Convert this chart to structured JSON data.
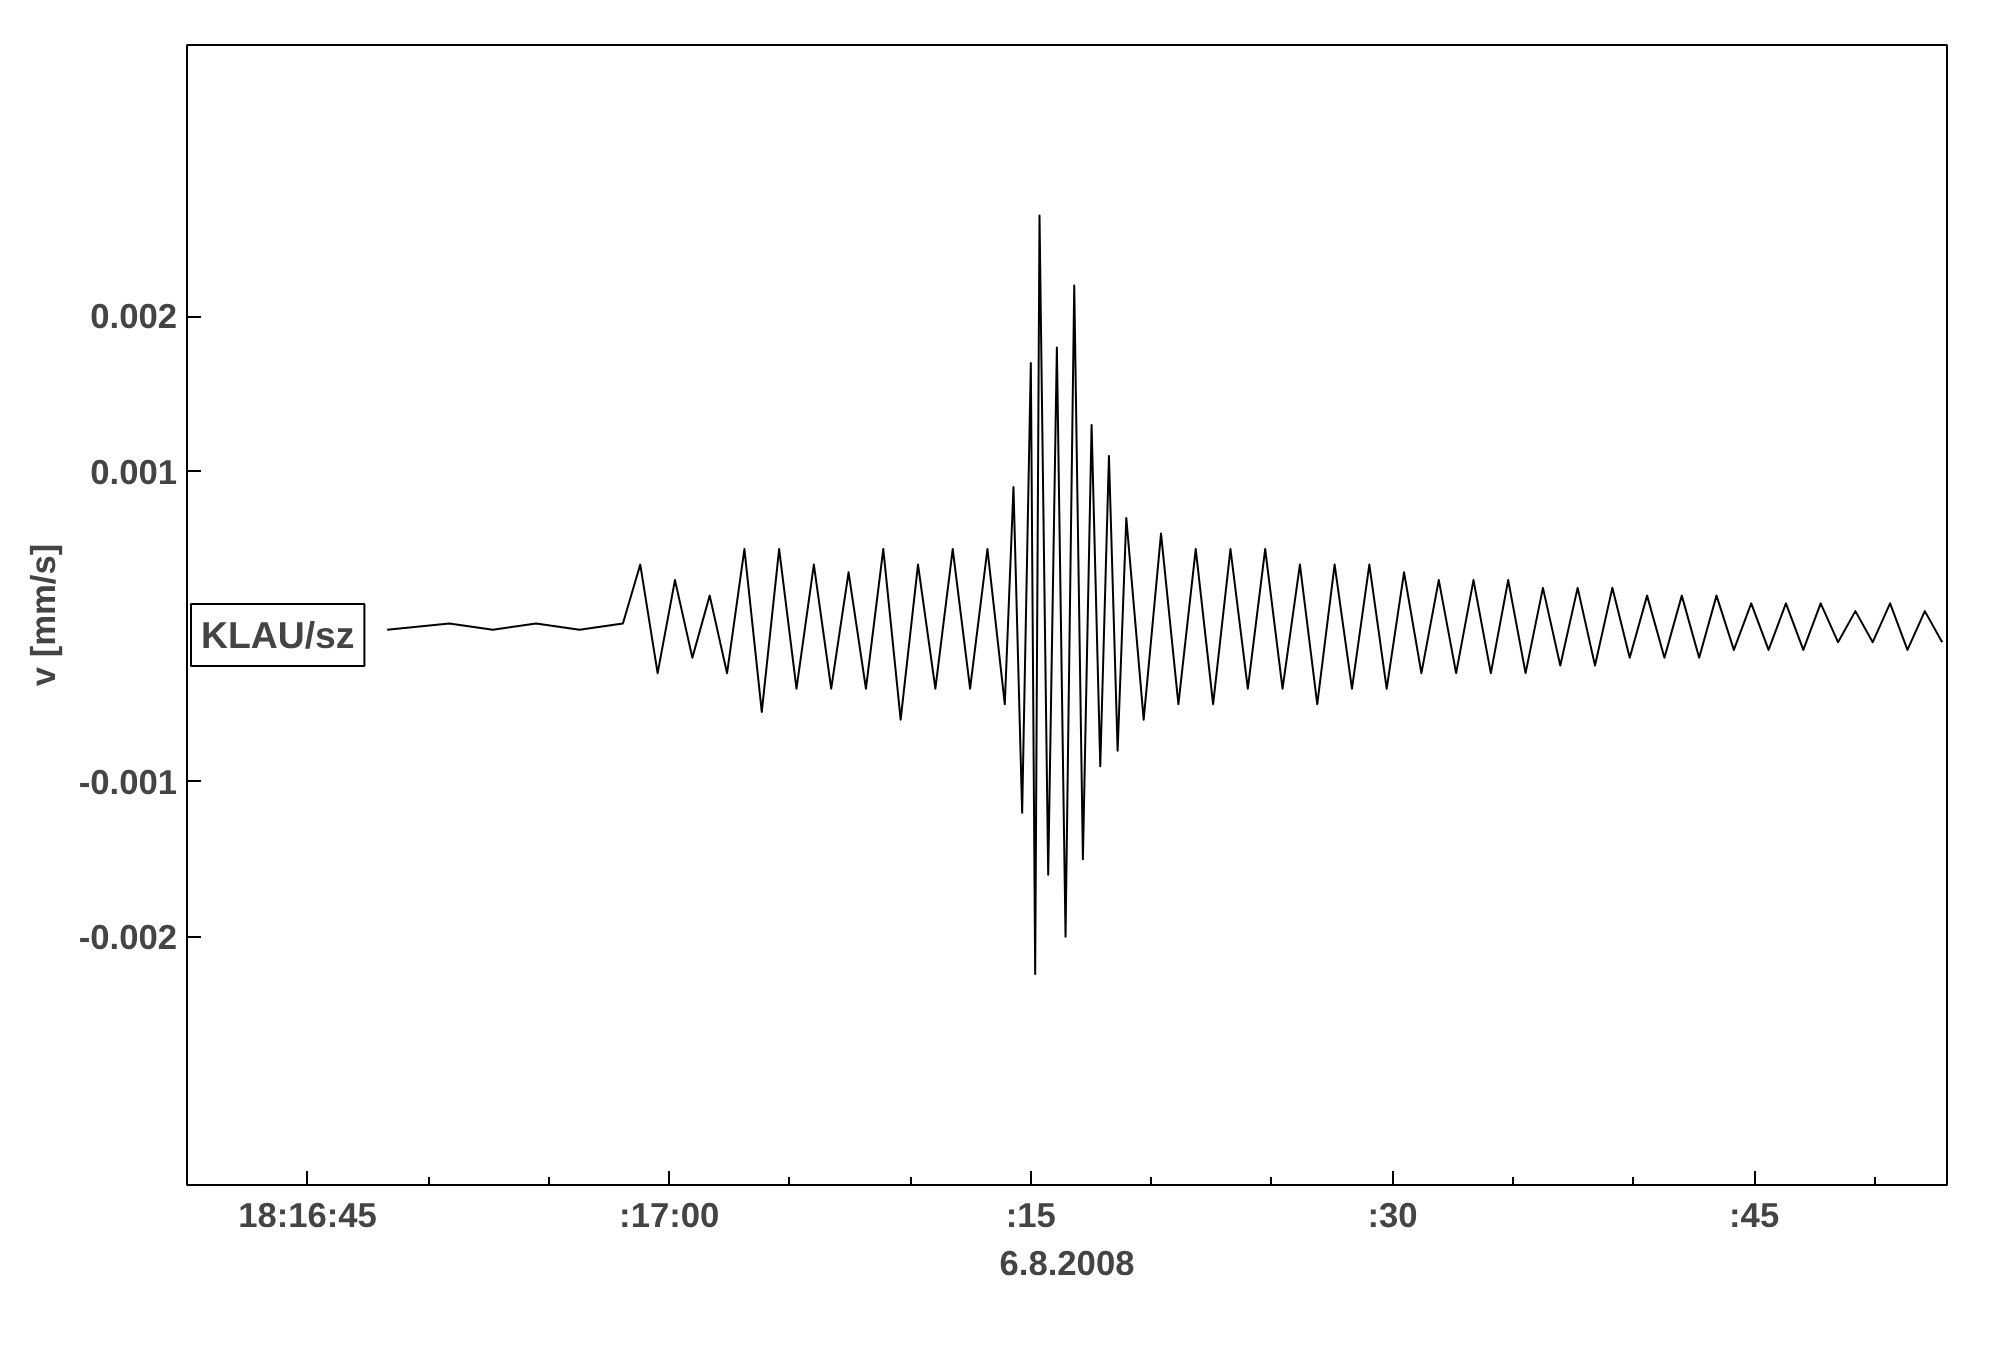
{
  "chart_data": {
    "type": "line",
    "xlabel": "6.8.2008",
    "ylabel": "v [mm/s]",
    "annotations": [
      "KLAU/sz"
    ],
    "xlim": [
      "2008-08-06T18:16:40",
      "2008-08-06T18:17:53"
    ],
    "ylim": [
      -0.0036,
      0.00375
    ],
    "xticks": [
      {
        "value": "2008-08-06T18:16:45",
        "label": "18:16:45"
      },
      {
        "value": "2008-08-06T18:16:50",
        "label": null
      },
      {
        "value": "2008-08-06T18:16:55",
        "label": null
      },
      {
        "value": "2008-08-06T18:17:00",
        "label": ":17:00"
      },
      {
        "value": "2008-08-06T18:17:05",
        "label": null
      },
      {
        "value": "2008-08-06T18:17:10",
        "label": null
      },
      {
        "value": "2008-08-06T18:17:15",
        "label": ":15"
      },
      {
        "value": "2008-08-06T18:17:20",
        "label": null
      },
      {
        "value": "2008-08-06T18:17:25",
        "label": null
      },
      {
        "value": "2008-08-06T18:17:30",
        "label": ":30"
      },
      {
        "value": "2008-08-06T18:17:35",
        "label": null
      },
      {
        "value": "2008-08-06T18:17:40",
        "label": null
      },
      {
        "value": "2008-08-06T18:17:45",
        "label": ":45"
      },
      {
        "value": "2008-08-06T18:17:50",
        "label": null
      }
    ],
    "yticks": [
      -0.002,
      -0.001,
      0.001,
      0.002
    ],
    "marker": "none",
    "line_style": "solid",
    "series": [
      {
        "color": "#000000",
        "x": [
          "2008-08-06T18:16:48.30",
          "2008-08-06T18:16:50.88",
          "2008-08-06T18:16:52.68",
          "2008-08-06T18:16:54.48",
          "2008-08-06T18:16:56.28",
          "2008-08-06T18:16:58.08",
          "2008-08-06T18:16:58.80",
          "2008-08-06T18:16:59.52",
          "2008-08-06T18:17:00.24",
          "2008-08-06T18:17:00.96",
          "2008-08-06T18:17:01.68",
          "2008-08-06T18:17:02.40",
          "2008-08-06T18:17:03.12",
          "2008-08-06T18:17:03.84",
          "2008-08-06T18:17:04.56",
          "2008-08-06T18:17:05.28",
          "2008-08-06T18:17:06.00",
          "2008-08-06T18:17:06.72",
          "2008-08-06T18:17:07.44",
          "2008-08-06T18:17:08.16",
          "2008-08-06T18:17:08.88",
          "2008-08-06T18:17:09.60",
          "2008-08-06T18:17:10.32",
          "2008-08-06T18:17:11.04",
          "2008-08-06T18:17:11.76",
          "2008-08-06T18:17:12.48",
          "2008-08-06T18:17:13.20",
          "2008-08-06T18:17:13.92",
          "2008-08-06T18:17:14.28",
          "2008-08-06T18:17:14.64",
          "2008-08-06T18:17:15.00",
          "2008-08-06T18:17:15.18",
          "2008-08-06T18:17:15.36",
          "2008-08-06T18:17:15.72",
          "2008-08-06T18:17:16.08",
          "2008-08-06T18:17:16.44",
          "2008-08-06T18:17:16.80",
          "2008-08-06T18:17:17.16",
          "2008-08-06T18:17:17.52",
          "2008-08-06T18:17:17.88",
          "2008-08-06T18:17:18.24",
          "2008-08-06T18:17:18.60",
          "2008-08-06T18:17:18.96",
          "2008-08-06T18:17:19.68",
          "2008-08-06T18:17:20.40",
          "2008-08-06T18:17:21.12",
          "2008-08-06T18:17:21.84",
          "2008-08-06T18:17:22.56",
          "2008-08-06T18:17:23.28",
          "2008-08-06T18:17:24.00",
          "2008-08-06T18:17:24.72",
          "2008-08-06T18:17:25.44",
          "2008-08-06T18:17:26.16",
          "2008-08-06T18:17:26.88",
          "2008-08-06T18:17:27.60",
          "2008-08-06T18:17:28.32",
          "2008-08-06T18:17:29.04",
          "2008-08-06T18:17:29.76",
          "2008-08-06T18:17:30.48",
          "2008-08-06T18:17:31.20",
          "2008-08-06T18:17:31.92",
          "2008-08-06T18:17:32.64",
          "2008-08-06T18:17:33.36",
          "2008-08-06T18:17:34.08",
          "2008-08-06T18:17:34.80",
          "2008-08-06T18:17:35.52",
          "2008-08-06T18:17:36.24",
          "2008-08-06T18:17:36.96",
          "2008-08-06T18:17:37.68",
          "2008-08-06T18:17:38.40",
          "2008-08-06T18:17:39.12",
          "2008-08-06T18:17:39.84",
          "2008-08-06T18:17:40.56",
          "2008-08-06T18:17:41.28",
          "2008-08-06T18:17:42.00",
          "2008-08-06T18:17:42.72",
          "2008-08-06T18:17:43.44",
          "2008-08-06T18:17:44.16",
          "2008-08-06T18:17:44.88",
          "2008-08-06T18:17:45.60",
          "2008-08-06T18:17:46.32",
          "2008-08-06T18:17:47.04",
          "2008-08-06T18:17:47.76",
          "2008-08-06T18:17:48.48",
          "2008-08-06T18:17:49.20",
          "2008-08-06T18:17:49.92",
          "2008-08-06T18:17:50.64",
          "2008-08-06T18:17:51.36",
          "2008-08-06T18:17:52.08",
          "2008-08-06T18:17:52.80"
        ],
        "values": [
          -2e-05,
          2e-05,
          -2e-05,
          2e-05,
          -2e-05,
          2e-05,
          0.0004,
          -0.0003,
          0.0003,
          -0.0002,
          0.0002,
          -0.0003,
          0.0005,
          -0.00055,
          0.0005,
          -0.0004,
          0.0004,
          -0.0004,
          0.00035,
          -0.0004,
          0.0005,
          -0.0006,
          0.0004,
          -0.0004,
          0.0005,
          -0.0004,
          0.0005,
          -0.0005,
          0.0009,
          -0.0012,
          0.0017,
          -0.00224,
          0.00265,
          -0.0016,
          0.0018,
          -0.002,
          0.0022,
          -0.0015,
          0.0013,
          -0.0009,
          0.0011,
          -0.0008,
          0.0007,
          -0.0006,
          0.0006,
          -0.0005,
          0.0005,
          -0.0005,
          0.0005,
          -0.0004,
          0.0005,
          -0.0004,
          0.0004,
          -0.0005,
          0.0004,
          -0.0004,
          0.0004,
          -0.0004,
          0.00035,
          -0.0003,
          0.0003,
          -0.0003,
          0.0003,
          -0.0003,
          0.0003,
          -0.0003,
          0.00025,
          -0.00025,
          0.00025,
          -0.00025,
          0.00025,
          -0.0002,
          0.0002,
          -0.0002,
          0.0002,
          -0.0002,
          0.0002,
          -0.00015,
          0.00015,
          -0.00015,
          0.00015,
          -0.00015,
          0.00015,
          -0.0001,
          0.0001,
          -0.0001,
          0.00015,
          -0.00015,
          0.0001,
          -0.0001
        ]
      }
    ]
  }
}
